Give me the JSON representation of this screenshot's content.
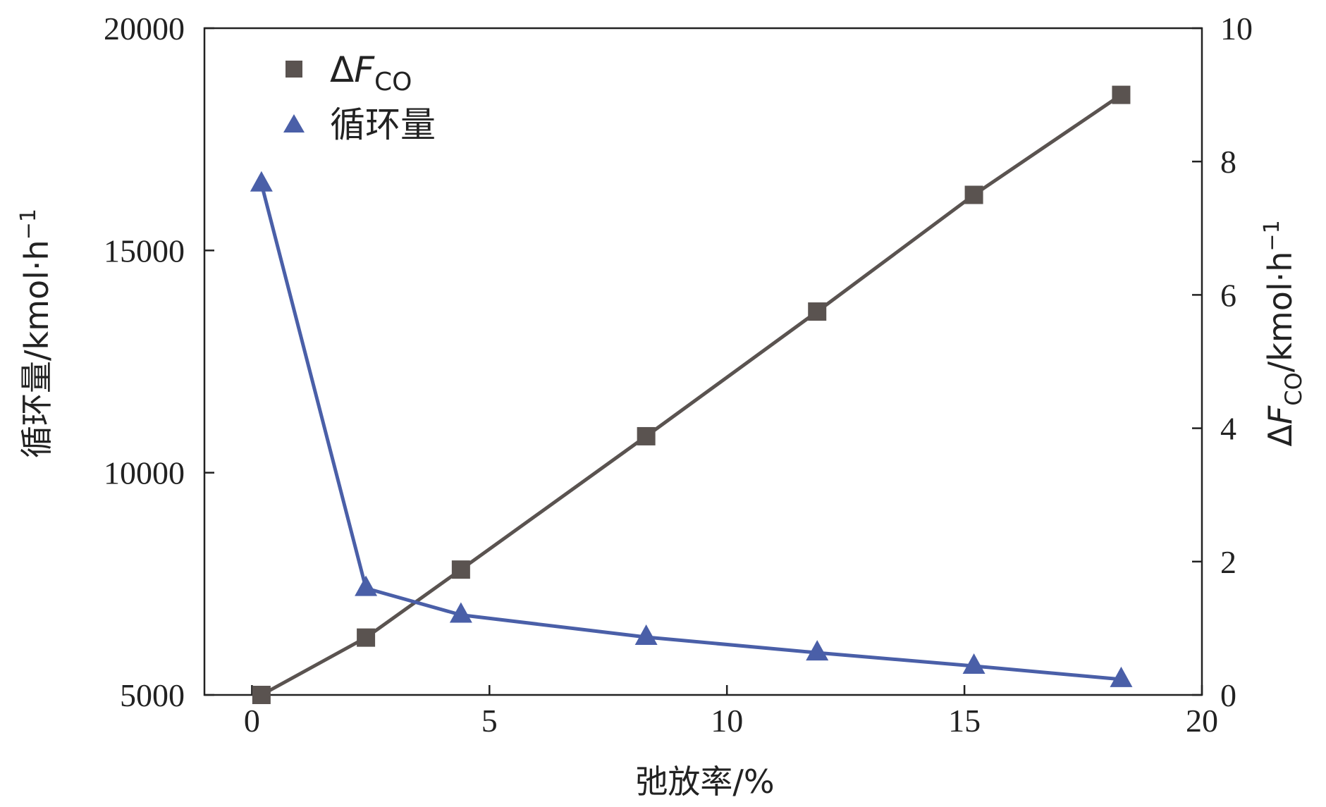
{
  "chart_data": {
    "type": "line",
    "x": [
      0.2,
      2.4,
      4.4,
      8.3,
      11.9,
      15.2,
      18.3
    ],
    "xlim": [
      -1,
      20
    ],
    "xticks": [
      "0",
      "5",
      "10",
      "15",
      "20"
    ],
    "xlabel": "弛放率/%",
    "ylabel_left": {
      "main": "循环量/kmol·h",
      "sup": "−1"
    },
    "ylim_left": [
      5000,
      20000
    ],
    "yticks_left": [
      "5000",
      "10000",
      "15000",
      "20000"
    ],
    "ylabel_right": {
      "delta": "Δ",
      "F": "F",
      "sub": "CO",
      "unit": "/kmol·h",
      "sup": "−1"
    },
    "ylim_right": [
      0,
      10
    ],
    "yticks_right": [
      "0",
      "2",
      "4",
      "6",
      "8",
      "10"
    ],
    "series": [
      {
        "name": "ΔF_CO",
        "axis": "right",
        "marker": "square",
        "color": "#5a5350",
        "values": [
          0,
          0.86,
          1.88,
          3.88,
          5.75,
          7.5,
          9.0
        ]
      },
      {
        "name": "循环量",
        "axis": "left",
        "marker": "triangle",
        "color": "#4a5fa8",
        "values": [
          16500,
          7400,
          6800,
          6300,
          5950,
          5650,
          5350
        ]
      }
    ],
    "legend": {
      "position": "top-left",
      "items": [
        {
          "delta": "Δ",
          "F": "F",
          "sub": "CO"
        },
        {
          "label": "循环量"
        }
      ]
    },
    "grid": false
  }
}
